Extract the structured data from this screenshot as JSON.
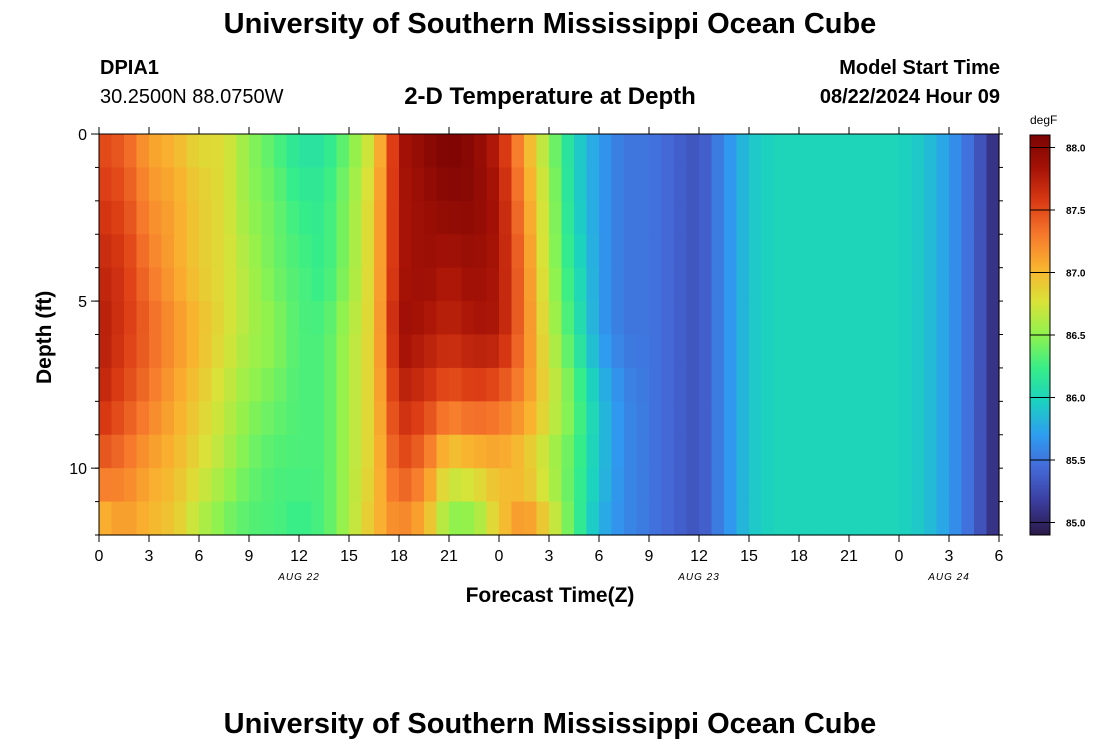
{
  "page": {
    "title": "University of Southern Mississippi Ocean Cube",
    "title_repeat": "University of Southern Mississippi Ocean Cube",
    "station_id": "DPIA1",
    "station_coords": "30.2500N  88.0750W",
    "plot_title": "2-D Temperature at Depth",
    "model_start_label": "Model Start Time",
    "model_start_value": "08/22/2024 Hour 09"
  },
  "chart_data": {
    "type": "heatmap",
    "title": "2-D Temperature at Depth",
    "xlabel": "Forecast Time(Z)",
    "ylabel": "Depth (ft)",
    "x_range_hours": [
      0,
      54
    ],
    "x_tick_labels": [
      "0",
      "3",
      "6",
      "9",
      "12",
      "15",
      "18",
      "21",
      "0",
      "3",
      "6",
      "9",
      "12",
      "15",
      "18",
      "21",
      "0",
      "3",
      "6"
    ],
    "date_labels": [
      {
        "text": "AUG 22",
        "at_hour": 12
      },
      {
        "text": "AUG 23",
        "at_hour": 36
      },
      {
        "text": "AUG 24",
        "at_hour": 51
      }
    ],
    "y_range_ft": [
      0,
      12
    ],
    "y_tick_labels": [
      "0",
      "5",
      "10"
    ],
    "y_ticks_ft": [
      0,
      5,
      10
    ],
    "colorbar": {
      "unit": "degF",
      "min": 84.9,
      "max": 88.1,
      "ticks": [
        "85.0",
        "85.5",
        "86.0",
        "86.5",
        "87.0",
        "87.5",
        "88.0"
      ],
      "tick_values": [
        85.0,
        85.5,
        86.0,
        86.5,
        87.0,
        87.5,
        88.0
      ],
      "colors": [
        "#2a1846",
        "#3b3d9e",
        "#4469d8",
        "#2e9df0",
        "#1bd1c1",
        "#36ee88",
        "#8ff24e",
        "#d9e238",
        "#f9b32f",
        "#f6792c",
        "#db3b14",
        "#a51206",
        "#7a0403"
      ]
    },
    "depths_ft": [
      0,
      1,
      2,
      3,
      4,
      5,
      6,
      7,
      8,
      9,
      10,
      11,
      12
    ],
    "time_hours": [
      0,
      1.5,
      3,
      4.5,
      6,
      7.5,
      9,
      10.5,
      12,
      13.5,
      15,
      16.5,
      18,
      19.5,
      21,
      22.5,
      24,
      25.5,
      27,
      28.5,
      30,
      31.5,
      33,
      34.5,
      36,
      37.5,
      39,
      40.5,
      42,
      43.5,
      45,
      46.5,
      48,
      49.5,
      51,
      52.5,
      54
    ],
    "profiles": [
      {
        "depth_ft": 0,
        "values": [
          87.5,
          87.4,
          87.1,
          87.0,
          86.8,
          86.8,
          86.5,
          86.3,
          86.1,
          86.1,
          86.4,
          86.8,
          87.8,
          88.0,
          88.1,
          88.0,
          87.7,
          87.1,
          86.5,
          86.0,
          85.7,
          85.5,
          85.5,
          85.4,
          85.3,
          85.6,
          85.9,
          86.0,
          86.0,
          86.0,
          86.0,
          86.0,
          86.0,
          85.9,
          85.7,
          85.4,
          85.0
        ]
      },
      {
        "depth_ft": 2,
        "values": [
          87.6,
          87.5,
          87.2,
          87.1,
          86.9,
          86.8,
          86.5,
          86.4,
          86.2,
          86.2,
          86.5,
          86.9,
          87.8,
          87.9,
          88.0,
          88.0,
          87.8,
          87.2,
          86.6,
          86.0,
          85.7,
          85.5,
          85.5,
          85.4,
          85.3,
          85.6,
          85.9,
          86.0,
          86.0,
          86.0,
          86.0,
          86.0,
          86.0,
          85.9,
          85.7,
          85.4,
          85.0
        ]
      },
      {
        "depth_ft": 4,
        "values": [
          87.7,
          87.6,
          87.3,
          87.1,
          86.9,
          86.8,
          86.6,
          86.4,
          86.3,
          86.2,
          86.5,
          86.9,
          87.8,
          87.9,
          87.8,
          87.9,
          87.8,
          87.3,
          86.6,
          86.1,
          85.7,
          85.5,
          85.5,
          85.4,
          85.3,
          85.6,
          85.9,
          86.0,
          86.0,
          86.0,
          86.0,
          86.0,
          86.0,
          85.9,
          85.7,
          85.4,
          85.0
        ]
      },
      {
        "depth_ft": 6,
        "values": [
          87.8,
          87.6,
          87.4,
          87.2,
          87.0,
          86.8,
          86.6,
          86.5,
          86.3,
          86.3,
          86.6,
          86.9,
          87.9,
          87.8,
          87.7,
          87.8,
          87.8,
          87.3,
          86.7,
          86.2,
          85.7,
          85.5,
          85.5,
          85.4,
          85.3,
          85.6,
          85.9,
          86.0,
          86.0,
          86.0,
          86.0,
          86.0,
          86.0,
          85.9,
          85.7,
          85.4,
          85.0
        ]
      },
      {
        "depth_ft": 8,
        "values": [
          87.7,
          87.5,
          87.3,
          87.1,
          86.9,
          86.7,
          86.5,
          86.4,
          86.3,
          86.3,
          86.6,
          86.9,
          87.7,
          87.6,
          87.4,
          87.5,
          87.4,
          87.2,
          86.8,
          86.4,
          85.9,
          85.6,
          85.5,
          85.4,
          85.3,
          85.6,
          85.9,
          86.0,
          86.0,
          86.0,
          86.0,
          86.0,
          86.0,
          85.9,
          85.7,
          85.4,
          85.0
        ]
      },
      {
        "depth_ft": 10,
        "values": [
          87.4,
          87.3,
          87.1,
          87.0,
          86.8,
          86.6,
          86.4,
          86.3,
          86.3,
          86.3,
          86.6,
          86.9,
          87.5,
          87.3,
          86.8,
          86.9,
          87.0,
          86.9,
          86.6,
          86.3,
          85.9,
          85.6,
          85.5,
          85.4,
          85.3,
          85.6,
          85.9,
          86.0,
          86.0,
          86.0,
          86.0,
          86.0,
          86.0,
          85.9,
          85.7,
          85.4,
          85.0
        ]
      },
      {
        "depth_ft": 12,
        "values": [
          86.9,
          87.1,
          87.0,
          86.9,
          86.6,
          86.4,
          86.3,
          86.3,
          86.2,
          86.3,
          86.6,
          87.0,
          87.2,
          87.0,
          86.4,
          86.4,
          86.9,
          87.3,
          86.9,
          86.3,
          85.8,
          85.6,
          85.5,
          85.4,
          85.3,
          85.6,
          85.9,
          86.0,
          86.0,
          86.0,
          86.0,
          86.0,
          86.0,
          85.9,
          85.7,
          85.4,
          85.0
        ]
      }
    ]
  }
}
